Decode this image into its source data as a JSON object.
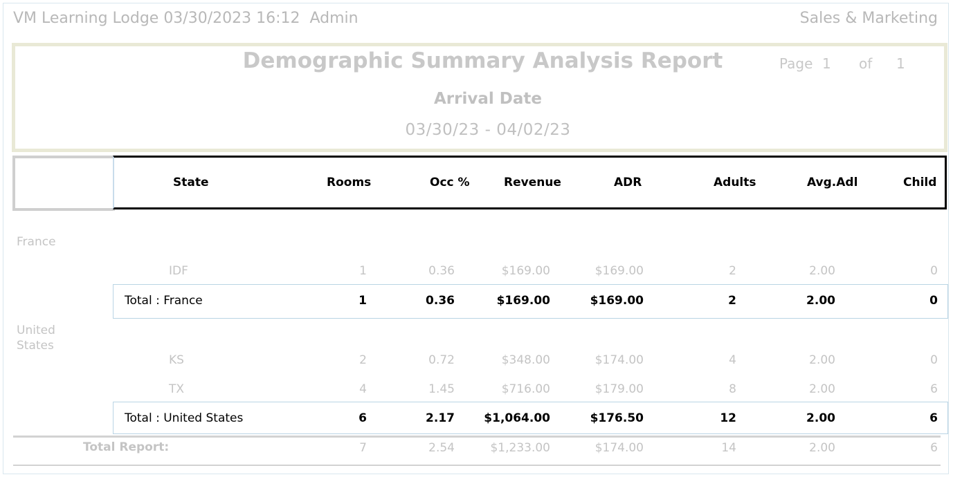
{
  "header": {
    "left": "VM Learning Lodge 03/30/2023 16:12  Admin",
    "right": "Sales & Marketing"
  },
  "report": {
    "title": "Demographic Summary Analysis Report",
    "subtitle": "Arrival Date",
    "date_range": "03/30/23 - 04/02/23",
    "page_label": "Page",
    "page_num": "1",
    "of_label": "of",
    "page_total": "1"
  },
  "columns": {
    "state": "State",
    "rooms": "Rooms",
    "occ": "Occ %",
    "revenue": "Revenue",
    "adr": "ADR",
    "adults": "Adults",
    "avgadl": "Avg.Adl",
    "child": "Child"
  },
  "groups": [
    {
      "country": "France",
      "rows": [
        {
          "state": "IDF",
          "rooms": "1",
          "occ": "0.36",
          "revenue": "$169.00",
          "adr": "$169.00",
          "adults": "2",
          "avgadl": "2.00",
          "child": "0"
        }
      ],
      "total": {
        "label": "Total : France",
        "rooms": "1",
        "occ": "0.36",
        "revenue": "$169.00",
        "adr": "$169.00",
        "adults": "2",
        "avgadl": "2.00",
        "child": "0"
      }
    },
    {
      "country": "United States",
      "rows": [
        {
          "state": "KS",
          "rooms": "2",
          "occ": "0.72",
          "revenue": "$348.00",
          "adr": "$174.00",
          "adults": "4",
          "avgadl": "2.00",
          "child": "0"
        },
        {
          "state": "TX",
          "rooms": "4",
          "occ": "1.45",
          "revenue": "$716.00",
          "adr": "$179.00",
          "adults": "8",
          "avgadl": "2.00",
          "child": "6"
        }
      ],
      "total": {
        "label": "Total : United States",
        "rooms": "6",
        "occ": "2.17",
        "revenue": "$1,064.00",
        "adr": "$176.50",
        "adults": "12",
        "avgadl": "2.00",
        "child": "6"
      }
    }
  ],
  "grand_total": {
    "label": "Total Report:",
    "rooms": "7",
    "occ": "2.54",
    "revenue": "$1,233.00",
    "adr": "$174.00",
    "adults": "14",
    "avgadl": "2.00",
    "child": "6"
  }
}
